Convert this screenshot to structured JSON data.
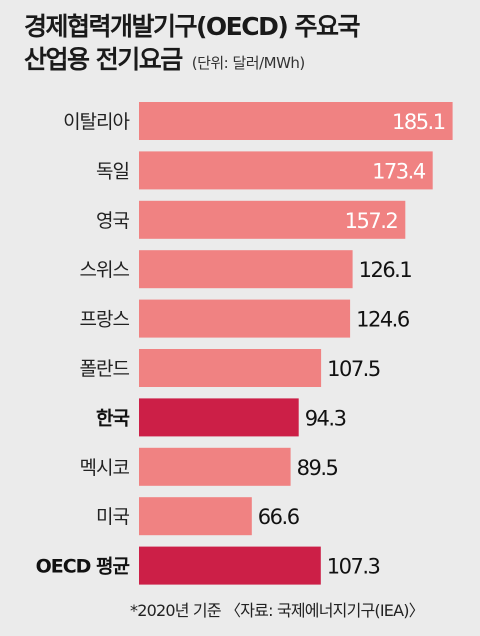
{
  "chart_data": {
    "type": "bar",
    "orientation": "horizontal",
    "title_line1": "경제협력개발기구(OECD) 주요국",
    "title_line2": "산업용 전기요금",
    "unit": "(단위: 달러/MWh)",
    "categories": [
      "이탈리아",
      "독일",
      "영국",
      "스위스",
      "프랑스",
      "폴란드",
      "한국",
      "멕시코",
      "미국",
      "OECD 평균"
    ],
    "values": [
      185.1,
      173.4,
      157.2,
      126.1,
      124.6,
      107.5,
      94.3,
      89.5,
      66.6,
      107.3
    ],
    "value_labels": [
      "185.1",
      "173.4",
      "157.2",
      "126.1",
      "124.6",
      "107.5",
      "94.3",
      "89.5",
      "66.6",
      "107.3"
    ],
    "highlighted": [
      false,
      false,
      false,
      false,
      false,
      false,
      true,
      false,
      false,
      true
    ],
    "label_inside": [
      true,
      true,
      true,
      false,
      false,
      false,
      false,
      false,
      false,
      false
    ],
    "footnote": "*2020년 기준 〈자료: 국제에너지기구(IEA)〉"
  },
  "colors": {
    "background": "#ebebeb",
    "bar": "#f08282",
    "bar_highlight": "#cc1f47",
    "label_inside": "#ffffff",
    "label_outside": "#111111"
  }
}
